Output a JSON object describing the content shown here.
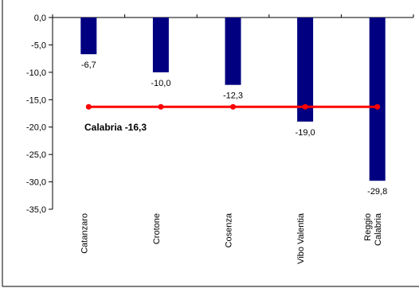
{
  "chart_data": {
    "type": "bar",
    "title": "",
    "xlabel": "",
    "ylabel": "",
    "categories": [
      "Catanzaro",
      "Crotone",
      "Cosenza",
      "Vibo Valentia",
      "Reggio Calabria"
    ],
    "category_label_lines": [
      [
        "Catanzaro"
      ],
      [
        "Crotone"
      ],
      [
        "Cosenza"
      ],
      [
        "Vibo Valentia"
      ],
      [
        "Reggio",
        "Calabria"
      ]
    ],
    "values": [
      -6.7,
      -10.0,
      -12.3,
      -19.0,
      -29.8
    ],
    "value_labels": [
      "-6,7",
      "-10,0",
      "-12,3",
      "-19,0",
      "-29,8"
    ],
    "ylim": [
      -35,
      0
    ],
    "yticks": [
      0,
      -5,
      -10,
      -15,
      -20,
      -25,
      -30,
      -35
    ],
    "ytick_labels": [
      "0,0",
      "-5,0",
      "-10,0",
      "-15,0",
      "-20,0",
      "-25,0",
      "-30,0",
      "-35,0"
    ],
    "reference_line": {
      "label": "Calabria -16,3",
      "value": -16.3
    },
    "grid": false,
    "bar_color": "#000080",
    "line_color": "#ff0000"
  }
}
